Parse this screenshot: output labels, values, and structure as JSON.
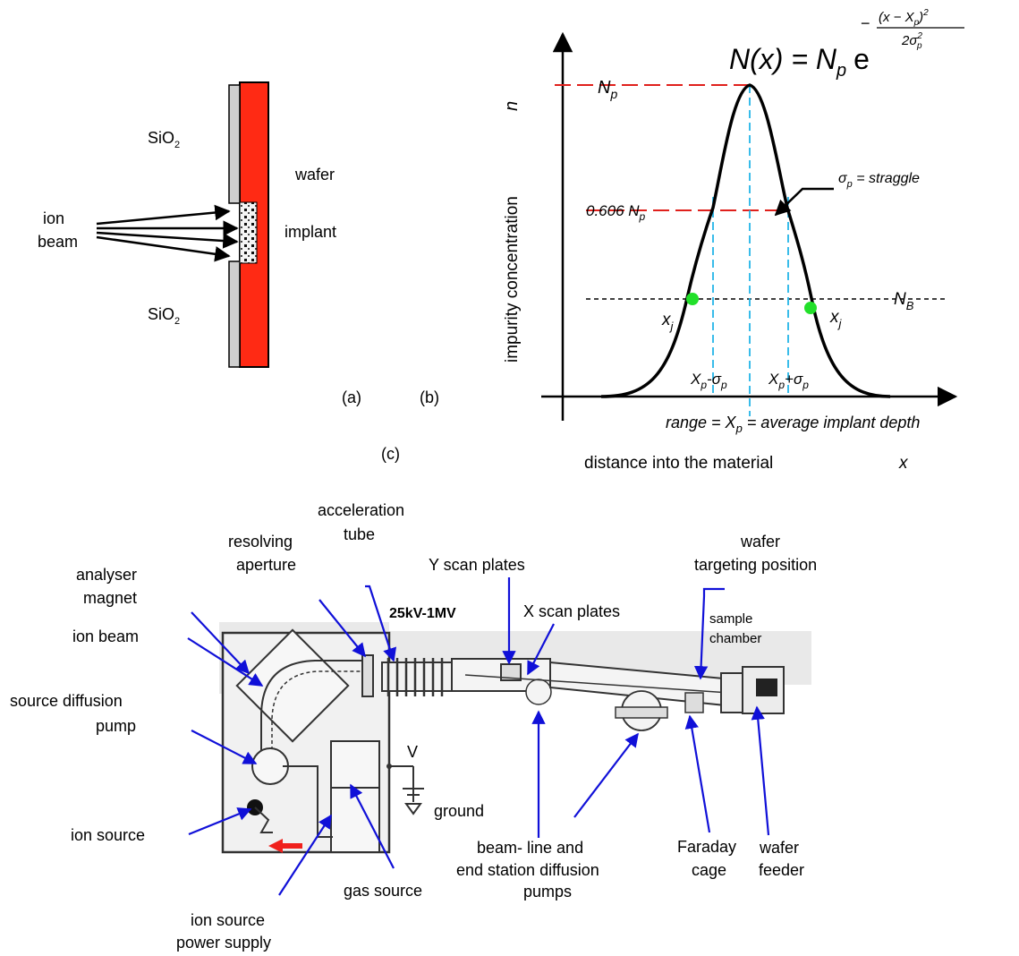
{
  "panel_a": {
    "oxide_top": "SiO",
    "oxide_top_sub": "2",
    "oxide_bottom": "SiO",
    "oxide_bottom_sub": "2",
    "wafer": "wafer",
    "ion_beam_1": "ion",
    "ion_beam_2": "beam",
    "implant": "implant",
    "tag": "(a)",
    "colors": {
      "wafer": "#ff2a14",
      "oxide": "#cfcfcf"
    }
  },
  "panel_b": {
    "tag": "(b)",
    "formula_lhs": "N(x) = N",
    "formula_lhs_sub": "p",
    "formula_e": "e",
    "formula_exp_minus": "−",
    "formula_exp_num": "(x − X",
    "formula_exp_num_sub": "p",
    "formula_exp_num_close": ")",
    "formula_exp_num_sup": "2",
    "formula_exp_den": "2σ",
    "formula_exp_den_sup": "2",
    "formula_exp_den_sub": "p",
    "peak_label": "N",
    "peak_label_sub": "p",
    "fraction_label": "0.606 N",
    "fraction_label_sub": "p",
    "background_label": "N",
    "background_label_sub": "B",
    "junction_left": "x",
    "junction_left_sub": "j",
    "junction_right": "x",
    "junction_right_sub": "j",
    "sigma_label_sym": "σ",
    "sigma_label_sub": "p",
    "sigma_label_rest": " = straggle",
    "minus_sigma": "X",
    "minus_sigma_sub": "p",
    "minus_sigma_rest": "-σ",
    "minus_sigma_rest_sub": "p",
    "plus_sigma": "X",
    "plus_sigma_sub": "p",
    "plus_sigma_rest": "+σ",
    "plus_sigma_rest_sub": "p",
    "range_label_1": "range",
    "range_label_2": " = X",
    "range_label_sub": "p",
    "range_label_3": " = average implant depth",
    "y_axis_label": "impurity concentration",
    "y_axis_var": "n",
    "x_axis_label": "distance into the material",
    "x_axis_var": "x",
    "colors": {
      "red_guides": "#e0201c",
      "cyan_guides": "#23b5e8",
      "junction_dots": "#22e02a"
    }
  },
  "panel_c": {
    "tag": "(c)",
    "labels": {
      "analyser_1": "analyser",
      "analyser_2": "magnet",
      "ion_beam": "ion beam",
      "source_pump_1": "source diffusion",
      "source_pump_2": "pump",
      "ion_source": "ion source",
      "power_supply_1": "ion source",
      "power_supply_2": "power supply",
      "gas_source": "gas source",
      "resolving_1": "resolving",
      "resolving_2": "aperture",
      "accel_1": "acceleration",
      "accel_2": "tube",
      "voltage": "25kV-1MV",
      "y_scan": "Y scan plates",
      "x_scan": "X scan plates",
      "wafer_target_1": "wafer",
      "wafer_target_2": "targeting position",
      "sample_1": "sample",
      "sample_2": "chamber",
      "v": "V",
      "ground": "ground",
      "pumps_1": "beam- line and",
      "pumps_2": "end station diffusion",
      "pumps_3": "pumps",
      "faraday_1": "Faraday",
      "faraday_2": "cage",
      "feeder_1": "wafer",
      "feeder_2": "feeder"
    },
    "colors": {
      "arrows": "#1010d8",
      "panel_bg": "#e9e9e9",
      "drawing": "#333333",
      "red_arrow": "#f0201c"
    }
  }
}
